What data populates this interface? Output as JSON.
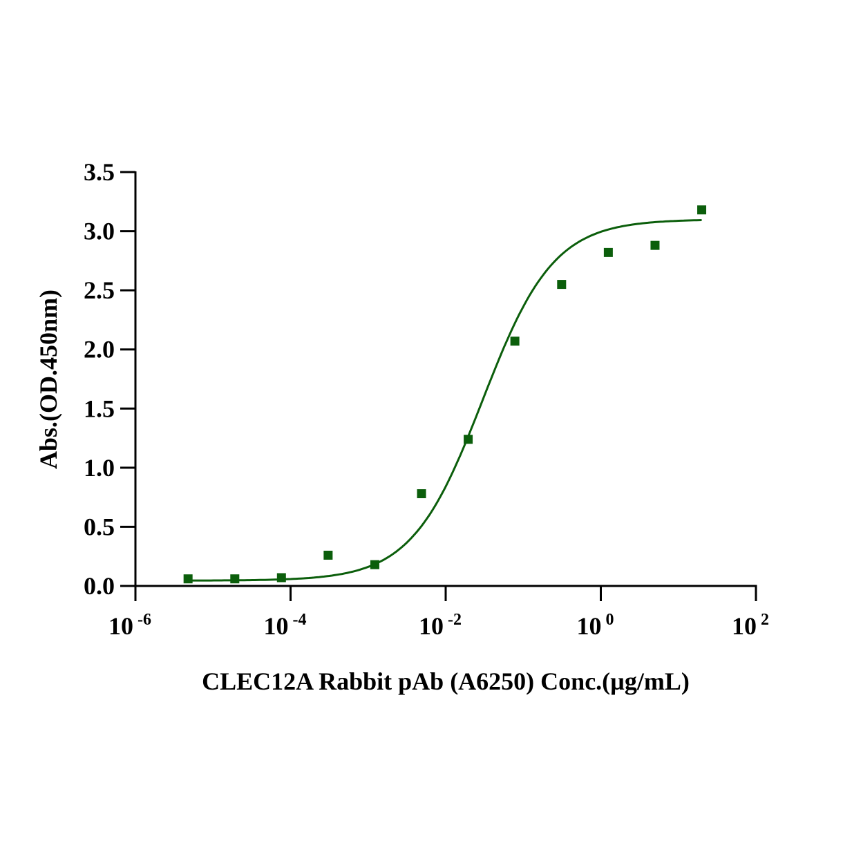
{
  "chart_data": {
    "type": "scatter",
    "title": "",
    "xlabel": "CLEC12A Rabbit pAb (A6250)  Conc.(µg/mL)",
    "ylabel": "Abs.(OD.450nm)",
    "x_scale": "log",
    "xlim": [
      1e-06,
      100
    ],
    "ylim": [
      0,
      3.5
    ],
    "x_ticks": [
      {
        "base": "10",
        "exp": "-6",
        "value": 1e-06
      },
      {
        "base": "10",
        "exp": "-4",
        "value": 0.0001
      },
      {
        "base": "10",
        "exp": "-2",
        "value": 0.01
      },
      {
        "base": "10",
        "exp": "0",
        "value": 1
      },
      {
        "base": "10",
        "exp": "2",
        "value": 100
      }
    ],
    "y_ticks": [
      "0.0",
      "0.5",
      "1.0",
      "1.5",
      "2.0",
      "2.5",
      "3.0",
      "3.5"
    ],
    "grid": false,
    "marker": "square",
    "color": "#0b5e0b",
    "series": [
      {
        "x": [
          4.77e-06,
          1.91e-05,
          7.63e-05,
          0.000305,
          0.00122,
          0.00488,
          0.0195,
          0.078,
          0.3125,
          1.25,
          5,
          20
        ],
        "y": [
          0.06,
          0.06,
          0.07,
          0.26,
          0.18,
          0.78,
          1.24,
          2.07,
          2.55,
          2.82,
          2.88,
          3.18
        ]
      }
    ],
    "fit": {
      "model": "4PL",
      "bottom": 0.045,
      "top": 3.1,
      "ec50": 0.03,
      "hill": 0.95
    }
  }
}
